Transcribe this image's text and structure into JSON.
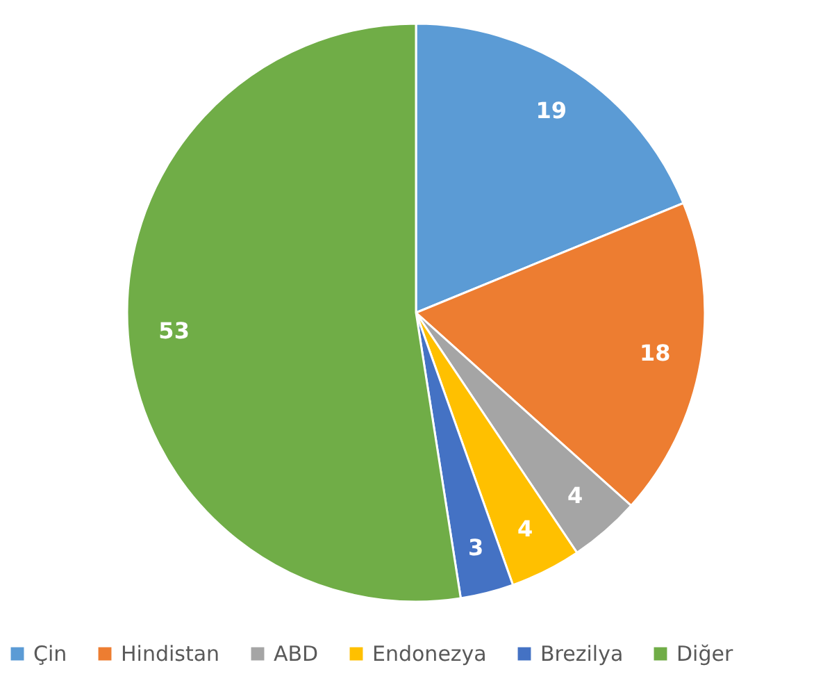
{
  "chart_data": {
    "type": "pie",
    "categories": [
      "Çin",
      "Hindistan",
      "ABD",
      "Endonezya",
      "Brezilya",
      "Diğer"
    ],
    "values": [
      19,
      18,
      4,
      4,
      3,
      53
    ],
    "colors": [
      "#5b9bd5",
      "#ed7d31",
      "#a5a5a5",
      "#ffc000",
      "#4472c4",
      "#70ad47"
    ],
    "data_labels": true,
    "legend": "bottom"
  }
}
